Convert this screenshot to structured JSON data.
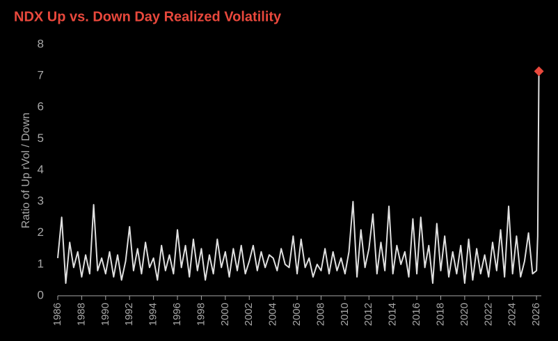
{
  "chart_data": {
    "type": "line",
    "title": "NDX Up vs. Down Day Realized Volatility",
    "y_label": "Ratio of Up rVol / Down",
    "x": [
      1986,
      1986.33,
      1986.67,
      1987,
      1987.33,
      1987.67,
      1988,
      1988.33,
      1988.67,
      1989,
      1989.33,
      1989.67,
      1990,
      1990.33,
      1990.67,
      1991,
      1991.33,
      1991.67,
      1992,
      1992.33,
      1992.67,
      1993,
      1993.33,
      1993.67,
      1994,
      1994.33,
      1994.67,
      1995,
      1995.33,
      1995.67,
      1996,
      1996.33,
      1996.67,
      1997,
      1997.33,
      1997.67,
      1998,
      1998.33,
      1998.67,
      1999,
      1999.33,
      1999.67,
      2000,
      2000.33,
      2000.67,
      2001,
      2001.33,
      2001.67,
      2002,
      2002.33,
      2002.67,
      2003,
      2003.33,
      2003.67,
      2004,
      2004.33,
      2004.67,
      2005,
      2005.33,
      2005.67,
      2006,
      2006.33,
      2006.67,
      2007,
      2007.33,
      2007.67,
      2008,
      2008.33,
      2008.67,
      2009,
      2009.33,
      2009.67,
      2010,
      2010.33,
      2010.67,
      2011,
      2011.33,
      2011.67,
      2012,
      2012.33,
      2012.67,
      2013,
      2013.33,
      2013.67,
      2014,
      2014.33,
      2014.67,
      2015,
      2015.33,
      2015.67,
      2016,
      2016.33,
      2016.67,
      2017,
      2017.33,
      2017.67,
      2018,
      2018.33,
      2018.67,
      2019,
      2019.33,
      2019.67,
      2020,
      2020.33,
      2020.67,
      2021,
      2021.33,
      2021.67,
      2022,
      2022.33,
      2022.67,
      2023,
      2023.33,
      2023.67,
      2024,
      2024.33,
      2024.67,
      2025,
      2025.33,
      2025.67,
      2026,
      2026.1,
      2026.2
    ],
    "series": [
      {
        "name": "Ratio",
        "color": "#e0e0e0",
        "values": [
          1.2,
          2.5,
          0.4,
          1.7,
          0.9,
          1.4,
          0.6,
          1.3,
          0.7,
          2.9,
          0.8,
          1.2,
          0.7,
          1.4,
          0.6,
          1.3,
          0.5,
          1.1,
          2.2,
          0.8,
          1.5,
          0.7,
          1.7,
          0.9,
          1.2,
          0.5,
          1.6,
          0.8,
          1.3,
          0.7,
          2.1,
          0.9,
          1.6,
          0.6,
          1.8,
          0.8,
          1.5,
          0.5,
          1.3,
          0.7,
          1.8,
          0.9,
          1.4,
          0.6,
          1.5,
          0.8,
          1.6,
          0.7,
          1.1,
          1.6,
          0.8,
          1.4,
          0.9,
          1.3,
          1.2,
          0.8,
          1.5,
          1.0,
          0.9,
          1.9,
          0.7,
          1.8,
          0.9,
          1.2,
          0.6,
          1.0,
          0.8,
          1.5,
          0.7,
          1.4,
          0.8,
          1.2,
          0.7,
          1.4,
          3.0,
          0.6,
          2.1,
          0.9,
          1.5,
          2.6,
          0.7,
          1.7,
          0.8,
          2.85,
          0.7,
          1.6,
          1.0,
          1.4,
          0.6,
          2.45,
          0.7,
          2.5,
          0.9,
          1.6,
          0.4,
          2.3,
          0.8,
          1.9,
          0.6,
          1.4,
          0.7,
          1.6,
          0.4,
          1.8,
          0.5,
          1.5,
          0.7,
          1.3,
          0.6,
          1.7,
          0.8,
          2.1,
          0.6,
          2.85,
          0.7,
          1.9,
          0.6,
          1.1,
          2.0,
          0.7,
          0.8,
          1.9,
          7.15
        ]
      }
    ],
    "end_marker_color": "#e8483c",
    "xlim": [
      1986,
      2026.4
    ],
    "xticks": [
      1986,
      1988,
      1990,
      1992,
      1994,
      1996,
      1998,
      2000,
      2002,
      2004,
      2006,
      2008,
      2010,
      2012,
      2014,
      2016,
      2018,
      2020,
      2022,
      2024,
      2026
    ],
    "ylim": [
      0,
      8
    ],
    "yticks": [
      0,
      1,
      2,
      3,
      4,
      5,
      6,
      7,
      8
    ]
  }
}
